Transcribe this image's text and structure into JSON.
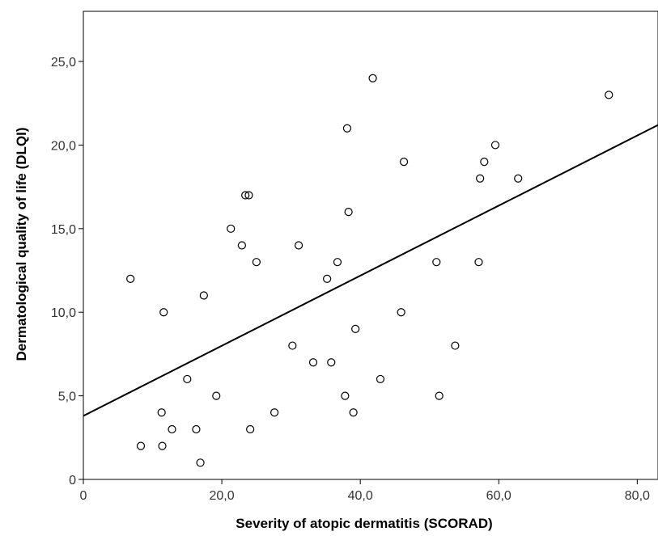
{
  "chart_data": {
    "type": "scatter",
    "title": "",
    "xlabel": "Severity of atopic dermatitis (SCORAD)",
    "ylabel": "Dermatological quality of life (DLQI)",
    "xlim": [
      0,
      83
    ],
    "ylim": [
      0,
      28
    ],
    "xticks": [
      0,
      20,
      40,
      60,
      80
    ],
    "xtick_labels": [
      "0",
      "20,0",
      "40,0",
      "60,0",
      "80,0"
    ],
    "yticks": [
      0,
      5,
      10,
      15,
      20,
      25
    ],
    "ytick_labels": [
      "0",
      "5,0",
      "10,0",
      "15,0",
      "20,0",
      "25,0"
    ],
    "grid": false,
    "marker": "open-circle",
    "points": [
      {
        "x": 6.8,
        "y": 12
      },
      {
        "x": 8.3,
        "y": 2
      },
      {
        "x": 11.3,
        "y": 4
      },
      {
        "x": 11.4,
        "y": 2
      },
      {
        "x": 11.6,
        "y": 10
      },
      {
        "x": 12.8,
        "y": 3
      },
      {
        "x": 15.0,
        "y": 6
      },
      {
        "x": 16.3,
        "y": 3
      },
      {
        "x": 16.9,
        "y": 1
      },
      {
        "x": 17.4,
        "y": 11
      },
      {
        "x": 19.2,
        "y": 5
      },
      {
        "x": 21.3,
        "y": 15
      },
      {
        "x": 22.9,
        "y": 14
      },
      {
        "x": 23.4,
        "y": 17
      },
      {
        "x": 23.9,
        "y": 17
      },
      {
        "x": 24.1,
        "y": 3
      },
      {
        "x": 25.0,
        "y": 13
      },
      {
        "x": 27.6,
        "y": 4
      },
      {
        "x": 30.2,
        "y": 8
      },
      {
        "x": 31.1,
        "y": 14
      },
      {
        "x": 33.2,
        "y": 7
      },
      {
        "x": 35.2,
        "y": 12
      },
      {
        "x": 35.8,
        "y": 7
      },
      {
        "x": 36.7,
        "y": 13
      },
      {
        "x": 37.8,
        "y": 5
      },
      {
        "x": 38.1,
        "y": 21
      },
      {
        "x": 38.3,
        "y": 16
      },
      {
        "x": 39.0,
        "y": 4
      },
      {
        "x": 39.3,
        "y": 9
      },
      {
        "x": 41.8,
        "y": 24
      },
      {
        "x": 42.9,
        "y": 6
      },
      {
        "x": 45.9,
        "y": 10
      },
      {
        "x": 46.3,
        "y": 19
      },
      {
        "x": 51.0,
        "y": 13
      },
      {
        "x": 51.4,
        "y": 5
      },
      {
        "x": 53.7,
        "y": 8
      },
      {
        "x": 57.1,
        "y": 13
      },
      {
        "x": 57.3,
        "y": 18
      },
      {
        "x": 57.9,
        "y": 19
      },
      {
        "x": 59.5,
        "y": 20
      },
      {
        "x": 62.8,
        "y": 18
      },
      {
        "x": 75.9,
        "y": 23
      }
    ],
    "fit_line": {
      "type": "linear",
      "x": [
        0,
        83
      ],
      "y": [
        3.8,
        21.2
      ]
    }
  }
}
